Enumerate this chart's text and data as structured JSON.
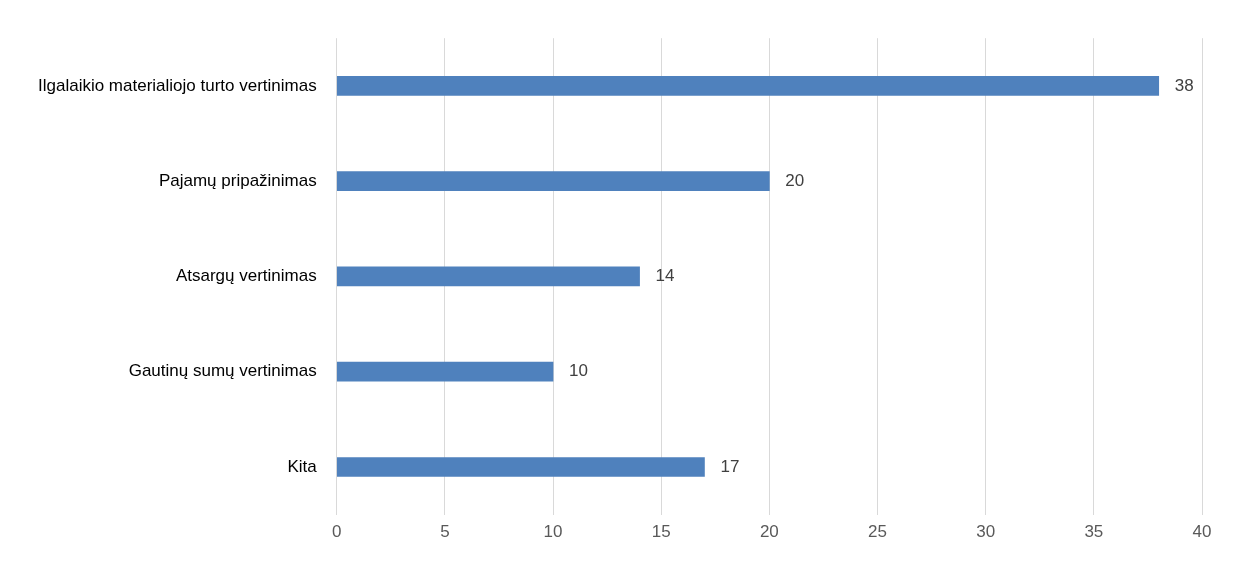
{
  "chart_data": {
    "type": "bar",
    "orientation": "horizontal",
    "categories": [
      "Ilgalaikio materialiojo turto vertinimas",
      "Pajamų pripažinimas",
      "Atsargų vertinimas",
      "Gautinų sumų vertinimas",
      "Kita"
    ],
    "values": [
      38,
      20,
      14,
      10,
      17
    ],
    "color": "#4f81bd",
    "xlim": [
      0,
      40
    ],
    "xticks": [
      0,
      5,
      10,
      15,
      20,
      25,
      30,
      35,
      40
    ],
    "grid": "x",
    "data_labels": true,
    "legend": false
  }
}
